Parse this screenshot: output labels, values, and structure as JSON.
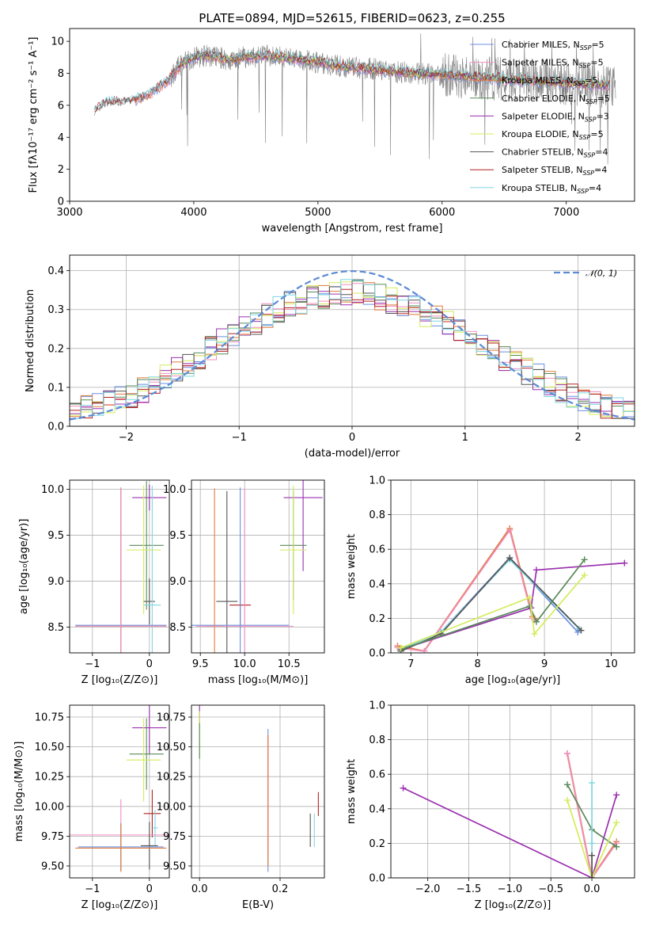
{
  "colors": {
    "Chabrier MILES": "#6b8fe0",
    "Salpeter MILES": "#f08fc0",
    "Kroupa MILES": "#e07b39",
    "Chabrier ELODIE": "#5a8a5a",
    "Salpeter ELODIE": "#9b30b0",
    "Kroupa ELODIE": "#d4ec5a",
    "Chabrier STELIB": "#555555",
    "Salpeter STELIB": "#b22222",
    "Kroupa STELIB": "#7fd6e0",
    "spectrum": "#808080",
    "gaussian": "#5b8ad6"
  },
  "chart_data": [
    {
      "id": "spectrum",
      "type": "line",
      "title": "PLATE=0894, MJD=52615, FIBERID=0623, z=0.255",
      "xlabel": "wavelength [Angstrom, rest frame]",
      "ylabel": "Flux [fλ10⁻¹⁷ erg cm⁻² s⁻¹ A⁻¹]",
      "xlim": [
        3000,
        7550
      ],
      "ylim": [
        0,
        10.8
      ],
      "xticks": [
        "3000",
        "4000",
        "5000",
        "6000",
        "7000"
      ],
      "yticks": [
        "0",
        "2",
        "4",
        "6",
        "8",
        "10"
      ],
      "legend_position": "right",
      "legend": [
        {
          "name": "Chabrier MILES",
          "label": "Chabrier MILES, N",
          "sub": "SSP",
          "tail": "=5"
        },
        {
          "name": "Salpeter MILES",
          "label": "Salpeter MILES, N",
          "sub": "SSP",
          "tail": "=5"
        },
        {
          "name": "Kroupa MILES",
          "label": "Kroupa MILES, N",
          "sub": "SSP",
          "tail": "=5"
        },
        {
          "name": "Chabrier ELODIE",
          "label": "Chabrier ELODIE, N",
          "sub": "SSP",
          "tail": "=5"
        },
        {
          "name": "Salpeter ELODIE",
          "label": "Salpeter ELODIE, N",
          "sub": "SSP",
          "tail": "=3"
        },
        {
          "name": "Kroupa ELODIE",
          "label": "Kroupa ELODIE, N",
          "sub": "SSP",
          "tail": "=5"
        },
        {
          "name": "Chabrier STELIB",
          "label": "Chabrier STELIB, N",
          "sub": "SSP",
          "tail": "=4"
        },
        {
          "name": "Salpeter STELIB",
          "label": "Salpeter STELIB, N",
          "sub": "SSP",
          "tail": "=4"
        },
        {
          "name": "Kroupa STELIB",
          "label": "Kroupa STELIB, N",
          "sub": "SSP",
          "tail": "=4"
        }
      ],
      "continuum": [
        [
          3200,
          5.6
        ],
        [
          3300,
          6.2
        ],
        [
          3400,
          6.2
        ],
        [
          3500,
          6.3
        ],
        [
          3600,
          6.5
        ],
        [
          3700,
          7.0
        ],
        [
          3800,
          7.6
        ],
        [
          3900,
          8.6
        ],
        [
          4000,
          9.0
        ],
        [
          4100,
          9.1
        ],
        [
          4200,
          9.0
        ],
        [
          4300,
          8.8
        ],
        [
          4400,
          9.0
        ],
        [
          4600,
          9.1
        ],
        [
          4800,
          8.9
        ],
        [
          5000,
          8.7
        ],
        [
          5200,
          8.4
        ],
        [
          5400,
          8.3
        ],
        [
          5600,
          8.1
        ],
        [
          5800,
          8.0
        ],
        [
          6000,
          7.9
        ],
        [
          6200,
          7.8
        ],
        [
          6400,
          7.7
        ],
        [
          6600,
          7.6
        ],
        [
          6800,
          7.5
        ],
        [
          7000,
          7.4
        ],
        [
          7200,
          7.3
        ],
        [
          7400,
          7.2
        ]
      ]
    },
    {
      "id": "residuals",
      "type": "line",
      "xlabel": "(data-model)/error",
      "ylabel": "Normed distribution",
      "xlim": [
        -2.5,
        2.5
      ],
      "ylim": [
        0,
        0.44
      ],
      "xticks": [
        "−2",
        "−1",
        "0",
        "1",
        "2"
      ],
      "yticks": [
        "0.0",
        "0.1",
        "0.2",
        "0.3",
        "0.4"
      ],
      "legend": [
        {
          "name": "gaussian",
          "label": "𝒩(0, 1)"
        }
      ],
      "legend_position": "top-right",
      "histogram_envelope": [
        [
          -2.5,
          0.04
        ],
        [
          -2.0,
          0.07
        ],
        [
          -1.5,
          0.15
        ],
        [
          -1.0,
          0.25
        ],
        [
          -0.5,
          0.32
        ],
        [
          0.0,
          0.35
        ],
        [
          0.5,
          0.31
        ],
        [
          1.0,
          0.24
        ],
        [
          1.5,
          0.15
        ],
        [
          2.0,
          0.07
        ],
        [
          2.5,
          0.03
        ]
      ]
    },
    {
      "id": "age-vs-Z",
      "type": "scatter",
      "xlabel": "Z [log₁₀(Z/Z⊙)]",
      "ylabel": "age  [log₁₀(age/yr)]",
      "xlim": [
        -1.4,
        0.35
      ],
      "ylim": [
        8.22,
        10.1
      ],
      "xticks": [
        "−1",
        "0"
      ],
      "yticks": [
        "8.5",
        "9.0",
        "9.5",
        "10.0"
      ],
      "points": [
        {
          "name": "Salpeter ELODIE",
          "x": 0.0,
          "y": 9.91,
          "xerr": 0.3,
          "yerr": 0.14
        },
        {
          "name": "Chabrier ELODIE",
          "x": -0.05,
          "y": 9.39,
          "xerr": 0.3,
          "yerr": 0.7
        },
        {
          "name": "Kroupa ELODIE",
          "x": -0.1,
          "y": 9.34,
          "xerr": 0.3,
          "yerr": 0.7
        },
        {
          "name": "Chabrier STELIB",
          "x": 0.0,
          "y": 8.78,
          "xerr": 0.1,
          "yerr": 0.25
        },
        {
          "name": "Kroupa STELIB",
          "x": 0.05,
          "y": 8.74,
          "xerr": 0.15,
          "yerr": 1.3
        },
        {
          "name": "Chabrier MILES",
          "x": -0.5,
          "y": 8.52,
          "xerr": 0.8,
          "yerr": 1.5
        },
        {
          "name": "Kroupa MILES",
          "x": -0.5,
          "y": 8.51,
          "xerr": 0.8,
          "yerr": 1.5
        },
        {
          "name": "Salpeter MILES",
          "x": -0.5,
          "y": 8.51,
          "xerr": 0.8,
          "yerr": 1.5
        }
      ]
    },
    {
      "id": "age-vs-mass",
      "type": "scatter",
      "xlabel": "mass [log₁₀(M/M⊙)]",
      "ylabel": "",
      "xlim": [
        9.4,
        10.9
      ],
      "ylim": [
        8.22,
        10.1
      ],
      "xticks": [
        "9.5",
        "10.0",
        "10.5"
      ],
      "yticks": [
        "8.5",
        "9.0",
        "9.5",
        "10.0"
      ],
      "points": [
        {
          "name": "Salpeter ELODIE",
          "x": 10.66,
          "y": 9.91,
          "xerr": 0.22,
          "yerr": 0.8
        },
        {
          "name": "Chabrier ELODIE",
          "x": 10.55,
          "y": 9.39,
          "xerr": 0.15,
          "yerr": 0.6
        },
        {
          "name": "Kroupa ELODIE",
          "x": 10.55,
          "y": 9.34,
          "xerr": 0.15,
          "yerr": 0.7
        },
        {
          "name": "Chabrier STELIB",
          "x": 9.8,
          "y": 8.78,
          "xerr": 0.12,
          "yerr": 1.2
        },
        {
          "name": "Salpeter STELIB",
          "x": 9.95,
          "y": 8.74,
          "xerr": 0.12,
          "yerr": 0.25
        },
        {
          "name": "Chabrier MILES",
          "x": 9.95,
          "y": 8.52,
          "xerr": 0.55,
          "yerr": 1.5
        },
        {
          "name": "Kroupa MILES",
          "x": 9.66,
          "y": 8.51,
          "xerr": 0.1,
          "yerr": 1.5
        },
        {
          "name": "Salpeter MILES",
          "x": 10.0,
          "y": 8.51,
          "xerr": 0.55,
          "yerr": 1.5
        }
      ]
    },
    {
      "id": "weight-vs-age",
      "type": "line",
      "xlabel": "age  [log₁₀(age/yr)]",
      "ylabel": "mass weight",
      "xlim": [
        6.7,
        10.35
      ],
      "ylim": [
        0,
        1.0
      ],
      "xticks": [
        "7",
        "8",
        "9",
        "10"
      ],
      "yticks": [
        "0.0",
        "0.2",
        "0.4",
        "0.6",
        "0.8",
        "1.0"
      ],
      "series": [
        {
          "name": "Kroupa MILES",
          "x": [
            6.8,
            7.2,
            8.48,
            8.82,
            8.85
          ],
          "y": [
            0.04,
            0.01,
            0.72,
            0.21,
            0.2
          ]
        },
        {
          "name": "Salpeter MILES",
          "x": [
            6.8,
            7.2,
            8.48,
            8.82,
            8.85
          ],
          "y": [
            0.03,
            0.01,
            0.71,
            0.2,
            0.19
          ]
        },
        {
          "name": "Chabrier MILES",
          "x": [
            6.85,
            7.45,
            8.48,
            9.5
          ],
          "y": [
            0.02,
            0.12,
            0.55,
            0.12
          ]
        },
        {
          "name": "Kroupa STELIB",
          "x": [
            6.85,
            7.45,
            8.48,
            9.52
          ],
          "y": [
            0.02,
            0.12,
            0.54,
            0.14
          ]
        },
        {
          "name": "Chabrier STELIB",
          "x": [
            6.85,
            7.45,
            8.48,
            9.55
          ],
          "y": [
            0.01,
            0.11,
            0.55,
            0.13
          ]
        },
        {
          "name": "Salpeter ELODIE",
          "x": [
            6.85,
            8.8,
            8.88,
            10.2
          ],
          "y": [
            0.02,
            0.26,
            0.48,
            0.52
          ]
        },
        {
          "name": "Chabrier ELODIE",
          "x": [
            6.85,
            8.78,
            8.88,
            9.6
          ],
          "y": [
            0.02,
            0.27,
            0.18,
            0.54
          ]
        },
        {
          "name": "Kroupa ELODIE",
          "x": [
            6.85,
            8.78,
            8.85,
            9.6
          ],
          "y": [
            0.03,
            0.32,
            0.11,
            0.45
          ]
        }
      ]
    },
    {
      "id": "mass-vs-Z",
      "type": "scatter",
      "xlabel": "Z [log₁₀(Z/Z⊙)]",
      "ylabel": "mass [log₁₀(M/M⊙)]",
      "xlim": [
        -1.4,
        0.35
      ],
      "ylim": [
        9.4,
        10.85
      ],
      "xticks": [
        "−1",
        "0"
      ],
      "yticks": [
        "9.50",
        "9.75",
        "10.00",
        "10.25",
        "10.50",
        "10.75"
      ],
      "points": [
        {
          "name": "Salpeter ELODIE",
          "x": 0.0,
          "y": 10.66,
          "xerr": 0.3,
          "yerr": 0.22
        },
        {
          "name": "Chabrier ELODIE",
          "x": -0.05,
          "y": 10.44,
          "xerr": 0.3,
          "yerr": 0.3
        },
        {
          "name": "Kroupa ELODIE",
          "x": -0.1,
          "y": 10.39,
          "xerr": 0.3,
          "yerr": 0.35
        },
        {
          "name": "Salpeter STELIB",
          "x": 0.05,
          "y": 9.94,
          "xerr": 0.15,
          "yerr": 0.2
        },
        {
          "name": "Kroupa STELIB",
          "x": 0.1,
          "y": 9.82,
          "xerr": 0.05,
          "yerr": 0.15
        },
        {
          "name": "Salpeter MILES",
          "x": -0.5,
          "y": 9.76,
          "xerr": 1.3,
          "yerr": 0.3
        },
        {
          "name": "Chabrier STELIB",
          "x": 0.0,
          "y": 9.67,
          "xerr": 0.15,
          "yerr": 0.2
        },
        {
          "name": "Chabrier MILES",
          "x": -0.5,
          "y": 9.66,
          "xerr": 0.75,
          "yerr": 0.2
        },
        {
          "name": "Kroupa MILES",
          "x": -0.5,
          "y": 9.65,
          "xerr": 0.8,
          "yerr": 0.2
        }
      ]
    },
    {
      "id": "mass-vs-EBV",
      "type": "scatter",
      "xlabel": "E(B-V)",
      "ylabel": "",
      "xlim": [
        -0.02,
        0.31
      ],
      "ylim": [
        9.4,
        10.85
      ],
      "xticks": [
        "0.0",
        "0.2"
      ],
      "yticks": [
        "9.50",
        "9.75",
        "10.00",
        "10.25",
        "10.50",
        "10.75"
      ],
      "points": [
        {
          "name": "Salpeter ELODIE",
          "x": 0.0,
          "y": 10.8,
          "xerr": 0,
          "yerr": 0.1
        },
        {
          "name": "Kroupa ELODIE",
          "x": 0.0,
          "y": 10.6,
          "xerr": 0,
          "yerr": 0.2
        },
        {
          "name": "Chabrier ELODIE",
          "x": 0.0,
          "y": 10.55,
          "xerr": 0,
          "yerr": 0.15
        },
        {
          "name": "Chabrier MILES",
          "x": 0.17,
          "y": 10.05,
          "xerr": 0,
          "yerr": 0.6
        },
        {
          "name": "Salpeter MILES",
          "x": 0.17,
          "y": 10.1,
          "xerr": 0,
          "yerr": 0.5
        },
        {
          "name": "Kroupa MILES",
          "x": 0.17,
          "y": 10.05,
          "xerr": 0,
          "yerr": 0.55
        },
        {
          "name": "Salpeter STELIB",
          "x": 0.295,
          "y": 10.02,
          "xerr": 0,
          "yerr": 0.1
        },
        {
          "name": "Chabrier STELIB",
          "x": 0.275,
          "y": 9.8,
          "xerr": 0,
          "yerr": 0.14
        },
        {
          "name": "Kroupa STELIB",
          "x": 0.285,
          "y": 9.8,
          "xerr": 0,
          "yerr": 0.14
        }
      ]
    },
    {
      "id": "weight-vs-Z",
      "type": "line",
      "xlabel": "Z [log₁₀(Z/Z⊙)]",
      "ylabel": "mass weight",
      "xlim": [
        -2.45,
        0.52
      ],
      "ylim": [
        0,
        1.0
      ],
      "xticks": [
        "−2.0",
        "−1.5",
        "−1.0",
        "−0.5",
        "0.0"
      ],
      "yticks": [
        "0.0",
        "0.2",
        "0.4",
        "0.6",
        "0.8",
        "1.0"
      ],
      "series": [
        {
          "name": "Salpeter ELODIE",
          "x": [
            -2.3,
            0.0,
            0.3
          ],
          "y": [
            0.52,
            0.0,
            0.48
          ]
        },
        {
          "name": "Kroupa MILES",
          "x": [
            -0.3,
            0.0,
            0.3
          ],
          "y": [
            0.72,
            0.0,
            0.21
          ]
        },
        {
          "name": "Salpeter MILES",
          "x": [
            -0.3,
            0.0,
            0.3
          ],
          "y": [
            0.72,
            0.0,
            0.2
          ]
        },
        {
          "name": "Chabrier ELODIE",
          "x": [
            -0.3,
            0.0,
            0.3
          ],
          "y": [
            0.54,
            0.28,
            0.18
          ]
        },
        {
          "name": "Kroupa ELODIE",
          "x": [
            -0.3,
            0.0,
            0.3
          ],
          "y": [
            0.45,
            0.0,
            0.32
          ]
        },
        {
          "name": "Kroupa STELIB",
          "x": [
            0.0,
            0.0,
            0.0
          ],
          "y": [
            0.55,
            0.2,
            0.0
          ]
        },
        {
          "name": "Chabrier STELIB",
          "x": [
            0.0,
            0.0
          ],
          "y": [
            0.13,
            0.0
          ]
        }
      ]
    }
  ]
}
